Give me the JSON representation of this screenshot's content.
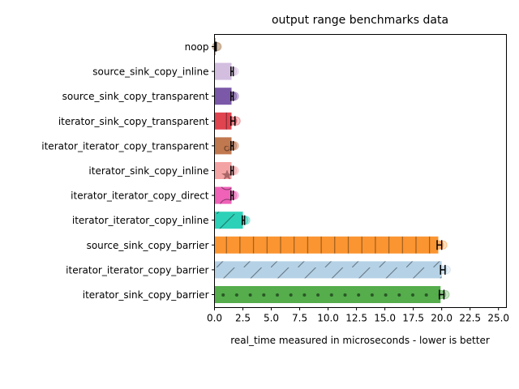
{
  "chart_data": {
    "type": "bar",
    "orientation": "horizontal",
    "title": "output range benchmarks data",
    "xlabel": "real_time measured in microseconds - lower is better",
    "ylabel": "",
    "xlim": [
      0,
      25.7
    ],
    "xticks": [
      "0.0",
      "2.5",
      "5.0",
      "7.5",
      "10.0",
      "12.5",
      "15.0",
      "17.5",
      "20.0",
      "22.5",
      "25.0"
    ],
    "grid": false,
    "bars": [
      {
        "label": "noop",
        "value": 0.1,
        "min": 0.05,
        "max": 0.15,
        "color": "#bd9a7a",
        "pattern": "none"
      },
      {
        "label": "source_sink_copy_inline",
        "value": 1.5,
        "min": 1.45,
        "max": 1.65,
        "color": "#d3bee0",
        "pattern": "none"
      },
      {
        "label": "source_sink_copy_transparent",
        "value": 1.5,
        "min": 1.45,
        "max": 1.65,
        "color": "#7b58a8",
        "pattern": "none"
      },
      {
        "label": "iterator_sink_copy_transparent",
        "value": 1.5,
        "min": 1.45,
        "max": 1.8,
        "color": "#e0444e",
        "pattern": "vlines"
      },
      {
        "label": "iterator_iterator_copy_transparent",
        "value": 1.5,
        "min": 1.45,
        "max": 1.65,
        "color": "#c0784f",
        "pattern": "circle"
      },
      {
        "label": "iterator_sink_copy_inline",
        "value": 1.5,
        "min": 1.45,
        "max": 1.65,
        "color": "#f4a3a5",
        "pattern": "star"
      },
      {
        "label": "iterator_iterator_copy_direct",
        "value": 1.5,
        "min": 1.45,
        "max": 1.65,
        "color": "#ef62b8",
        "pattern": "rings"
      },
      {
        "label": "iterator_iterator_copy_inline",
        "value": 2.5,
        "min": 2.45,
        "max": 2.65,
        "color": "#2dd1b8",
        "pattern": "diag"
      },
      {
        "label": "source_sink_copy_barrier",
        "value": 19.7,
        "min": 19.6,
        "max": 20.0,
        "color": "#fb9531",
        "pattern": "vlines"
      },
      {
        "label": "iterator_iterator_copy_barrier",
        "value": 20.0,
        "min": 19.9,
        "max": 20.3,
        "color": "#b5d1e6",
        "pattern": "diag"
      },
      {
        "label": "iterator_sink_copy_barrier",
        "value": 19.9,
        "min": 19.8,
        "max": 20.2,
        "color": "#55ad4c",
        "pattern": "dots"
      }
    ]
  }
}
